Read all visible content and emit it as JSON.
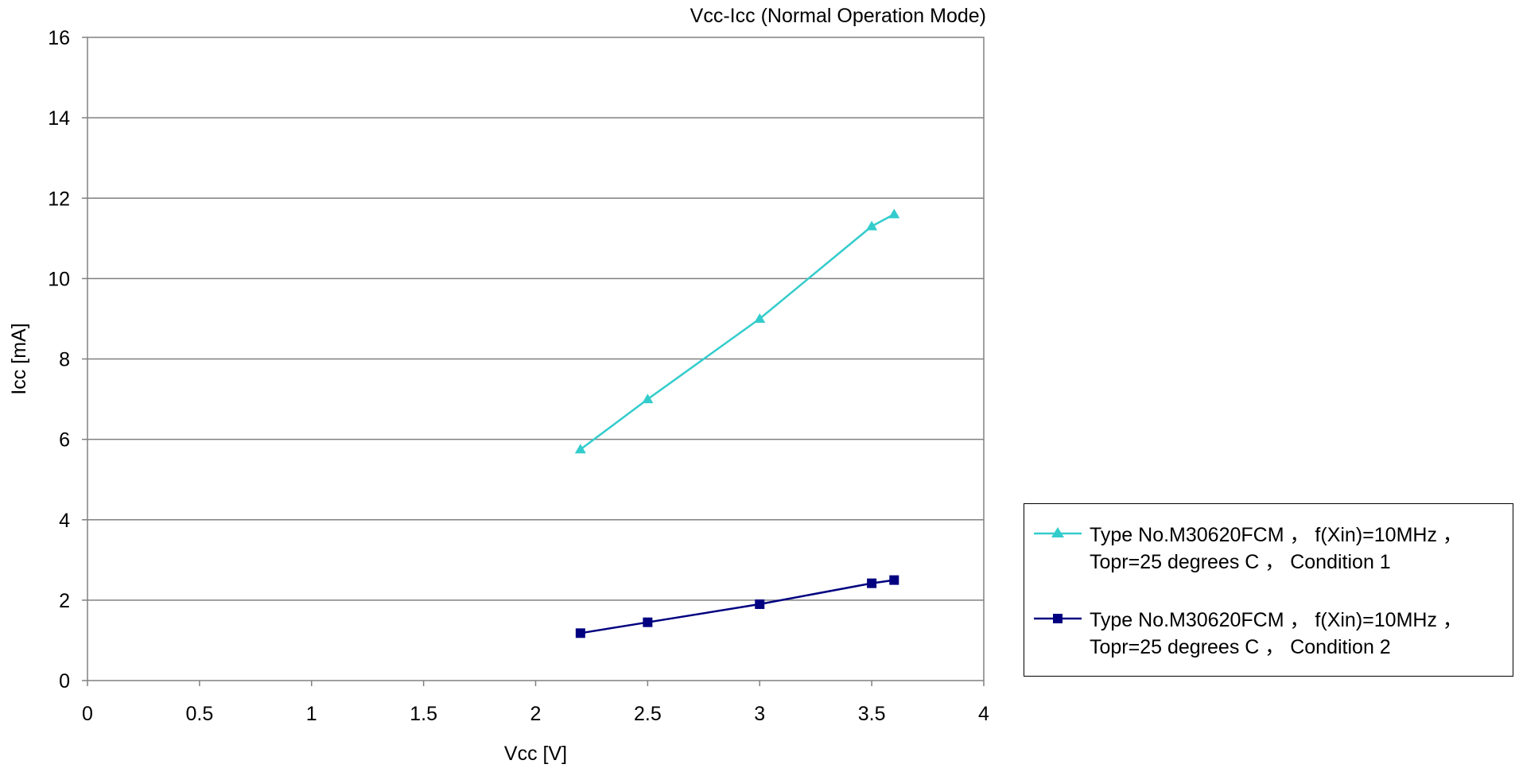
{
  "chart_data": {
    "type": "line",
    "title": "Vcc-Icc (Normal Operation Mode)",
    "xlabel": "Vcc [V]",
    "ylabel": "Icc [mA]",
    "xlim": [
      0,
      4
    ],
    "ylim": [
      0,
      16
    ],
    "x_ticks": [
      "0",
      "0.5",
      "1",
      "1.5",
      "2",
      "2.5",
      "3",
      "3.5",
      "4"
    ],
    "y_ticks": [
      "0",
      "2",
      "4",
      "6",
      "8",
      "10",
      "12",
      "14",
      "16"
    ],
    "grid": "horizontal",
    "legend_position": "right",
    "series": [
      {
        "name": "Type No.M30620FCM ， f(Xin)=10MHz ，\nTopr=25 degrees C ， Condition 1",
        "color": "#33CCCC",
        "marker": "triangle",
        "x": [
          2.2,
          2.5,
          3.0,
          3.5,
          3.6
        ],
        "y": [
          5.75,
          7.0,
          9.0,
          11.3,
          11.6
        ]
      },
      {
        "name": "Type No.M30620FCM ， f(Xin)=10MHz ，\nTopr=25 degrees C ， Condition 2",
        "color": "#000080",
        "marker": "square",
        "x": [
          2.2,
          2.5,
          3.0,
          3.5,
          3.6
        ],
        "y": [
          1.18,
          1.45,
          1.9,
          2.42,
          2.5
        ]
      }
    ]
  }
}
